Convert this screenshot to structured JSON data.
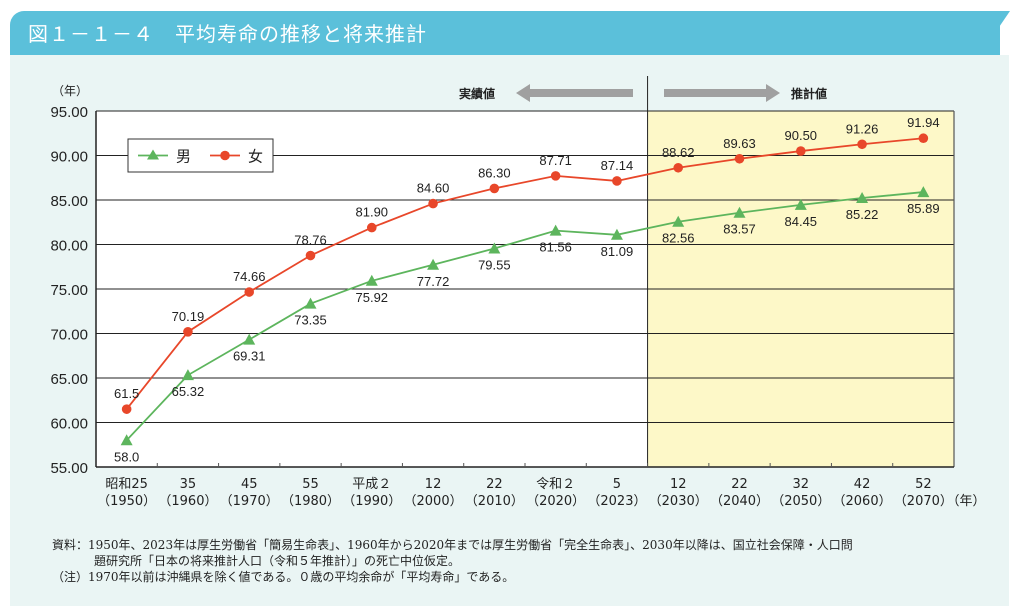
{
  "header": {
    "title": "図１－１－４　平均寿命の推移と将来推計"
  },
  "annotations": {
    "actual_label": "実績値",
    "projected_label": "推計値"
  },
  "notes": {
    "source_line1": "資料：1950年、2023年は厚生労働省「簡易生命表」、1960年から2020年までは厚生労働省「完全生命表」、2030年以降は、国立社会保障・人口問",
    "source_line2": "題研究所「日本の将来推計人口（令和５年推計）」の死亡中位仮定。",
    "note_line": "（注）1970年以前は沖縄県を除く値である。０歳の平均余命が「平均寿命」である。"
  },
  "colors": {
    "male": "#5db55d",
    "female": "#e8472a",
    "projection_bg": "#fdf8c8",
    "arrow": "#a0a0a0"
  },
  "chart_data": {
    "type": "line",
    "title": "平均寿命の推移と将来推計",
    "xlabel": "（年）",
    "ylabel": "（年）",
    "ylim": [
      55,
      95
    ],
    "yticks": [
      "55.00",
      "60.00",
      "65.00",
      "70.00",
      "75.00",
      "80.00",
      "85.00",
      "90.00",
      "95.00"
    ],
    "ytick_values": [
      55,
      60,
      65,
      70,
      75,
      80,
      85,
      90,
      95
    ],
    "grid": true,
    "legend_position": "top-left",
    "categories": [
      {
        "era": "昭和25",
        "year": "（1950）"
      },
      {
        "era": "35",
        "year": "（1960）"
      },
      {
        "era": "45",
        "year": "（1970）"
      },
      {
        "era": "55",
        "year": "（1980）"
      },
      {
        "era": "平成２",
        "year": "（1990）"
      },
      {
        "era": "12",
        "year": "（2000）"
      },
      {
        "era": "22",
        "year": "（2010）"
      },
      {
        "era": "令和２",
        "year": "（2020）"
      },
      {
        "era": "5",
        "year": "（2023）"
      },
      {
        "era": "12",
        "year": "（2030）"
      },
      {
        "era": "22",
        "year": "（2040）"
      },
      {
        "era": "32",
        "year": "（2050）"
      },
      {
        "era": "42",
        "year": "（2060）"
      },
      {
        "era": "52",
        "year": "（2070）"
      }
    ],
    "projection_start_index": 9,
    "series": [
      {
        "name": "男",
        "marker": "triangle",
        "values": [
          58.0,
          65.32,
          69.31,
          73.35,
          75.92,
          77.72,
          79.55,
          81.56,
          81.09,
          82.56,
          83.57,
          84.45,
          85.22,
          85.89
        ],
        "labels": [
          "58.0",
          "65.32",
          "69.31",
          "73.35",
          "75.92",
          "77.72",
          "79.55",
          "81.56",
          "81.09",
          "82.56",
          "83.57",
          "84.45",
          "85.22",
          "85.89"
        ],
        "label_position": "below"
      },
      {
        "name": "女",
        "marker": "circle",
        "values": [
          61.5,
          70.19,
          74.66,
          78.76,
          81.9,
          84.6,
          86.3,
          87.71,
          87.14,
          88.62,
          89.63,
          90.5,
          91.26,
          91.94
        ],
        "labels": [
          "61.5",
          "70.19",
          "74.66",
          "78.76",
          "81.90",
          "84.60",
          "86.30",
          "87.71",
          "87.14",
          "88.62",
          "89.63",
          "90.50",
          "91.26",
          "91.94"
        ],
        "label_position": "above"
      }
    ]
  }
}
